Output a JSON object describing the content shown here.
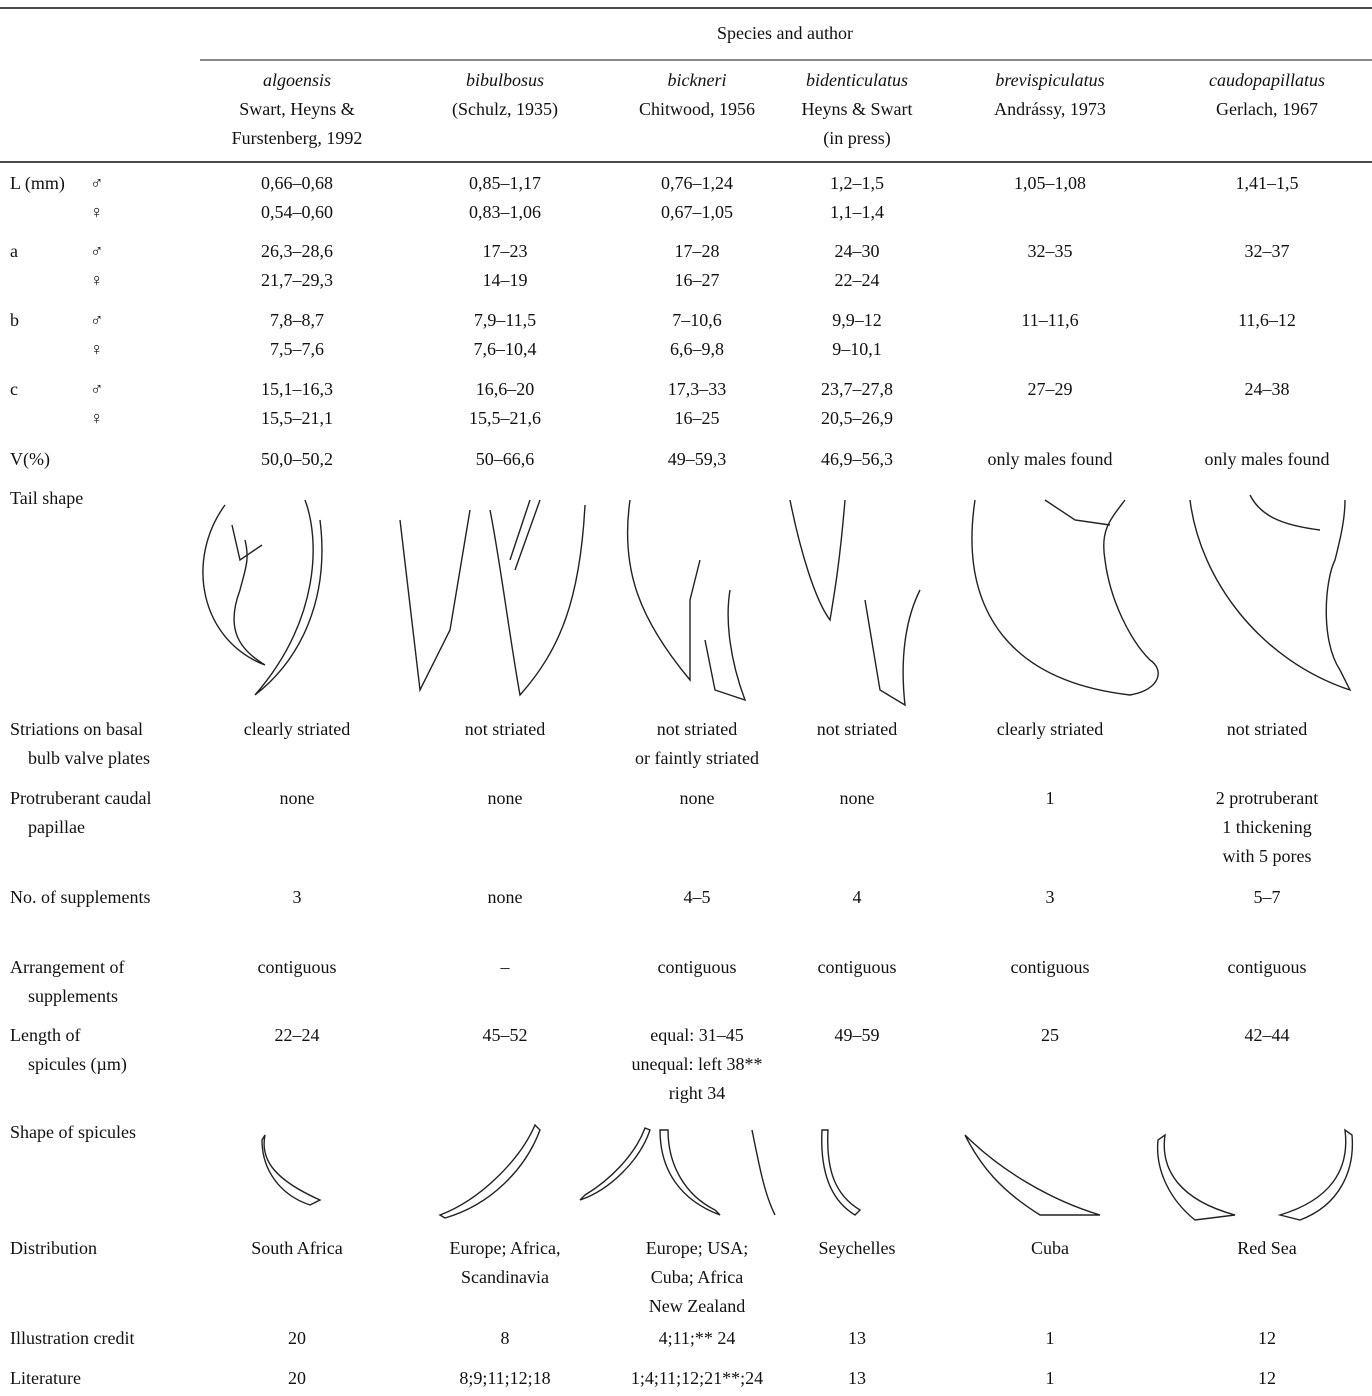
{
  "table": {
    "group_header": "Species and author",
    "columns": [
      {
        "species": "algoensis",
        "author": [
          "Swart, Heyns &",
          "Furstenberg, 1992"
        ]
      },
      {
        "species": "bibulbosus",
        "author": [
          "(Schulz, 1935)"
        ]
      },
      {
        "species": "bickneri",
        "author": [
          "Chitwood, 1956"
        ]
      },
      {
        "species": "bidenticulatus",
        "author": [
          "Heyns & Swart",
          "(in press)"
        ]
      },
      {
        "species": "brevispiculatus",
        "author": [
          "Andrássy, 1973"
        ]
      },
      {
        "species": "caudopapillatus",
        "author": [
          "Gerlach, 1967"
        ]
      }
    ],
    "rows": [
      {
        "label": [
          "L (mm)"
        ],
        "sex": [
          "♂",
          "♀"
        ],
        "cells": [
          [
            "0,66–0,68",
            "0,54–0,60"
          ],
          [
            "0,85–1,17",
            "0,83–1,06"
          ],
          [
            "0,76–1,24",
            "0,67–1,05"
          ],
          [
            "1,2–1,5",
            "1,1–1,4"
          ],
          [
            "1,05–1,08"
          ],
          [
            "1,41–1,5"
          ]
        ]
      },
      {
        "label": [
          "a"
        ],
        "sex": [
          "♂",
          "♀"
        ],
        "cells": [
          [
            "26,3–28,6",
            "21,7–29,3"
          ],
          [
            "17–23",
            "14–19"
          ],
          [
            "17–28",
            "16–27"
          ],
          [
            "24–30",
            "22–24"
          ],
          [
            "32–35"
          ],
          [
            "32–37"
          ]
        ]
      },
      {
        "label": [
          "b"
        ],
        "sex": [
          "♂",
          "♀"
        ],
        "cells": [
          [
            "7,8–8,7",
            "7,5–7,6"
          ],
          [
            "7,9–11,5",
            "7,6–10,4"
          ],
          [
            "7–10,6",
            "6,6–9,8"
          ],
          [
            "9,9–12",
            "9–10,1"
          ],
          [
            "11–11,6"
          ],
          [
            "11,6–12"
          ]
        ]
      },
      {
        "label": [
          "c"
        ],
        "sex": [
          "♂",
          "♀"
        ],
        "cells": [
          [
            "15,1–16,3",
            "15,5–21,1"
          ],
          [
            "16,6–20",
            "15,5–21,6"
          ],
          [
            "17,3–33",
            "16–25"
          ],
          [
            "23,7–27,8",
            "20,5–26,9"
          ],
          [
            "27–29"
          ],
          [
            "24–38"
          ]
        ]
      },
      {
        "label": [
          "V(%)"
        ],
        "cells": [
          [
            "50,0–50,2"
          ],
          [
            "50–66,6"
          ],
          [
            "49–59,3"
          ],
          [
            "46,9–56,3"
          ],
          [
            "only males found"
          ],
          [
            "only males found"
          ]
        ]
      },
      {
        "label": [
          "Tail shape"
        ]
      },
      {
        "label": [
          "Striations on basal",
          "bulb valve plates"
        ],
        "cells": [
          [
            "clearly striated"
          ],
          [
            "not striated"
          ],
          [
            "not striated",
            "or faintly striated"
          ],
          [
            "not striated"
          ],
          [
            "clearly striated"
          ],
          [
            "not striated"
          ]
        ]
      },
      {
        "label": [
          "Protruberant caudal",
          "papillae"
        ],
        "cells": [
          [
            "none"
          ],
          [
            "none"
          ],
          [
            "none"
          ],
          [
            "none"
          ],
          [
            "1"
          ],
          [
            "2 protruberant",
            "1 thickening",
            "with 5 pores"
          ]
        ]
      },
      {
        "label": [
          "No. of supplements"
        ],
        "cells": [
          [
            "3"
          ],
          [
            "none"
          ],
          [
            "4–5"
          ],
          [
            "4"
          ],
          [
            "3"
          ],
          [
            "5–7"
          ]
        ]
      },
      {
        "label": [
          "Arrangement of",
          "supplements"
        ],
        "cells": [
          [
            "contiguous"
          ],
          [
            "–"
          ],
          [
            "contiguous"
          ],
          [
            "contiguous"
          ],
          [
            "contiguous"
          ],
          [
            "contiguous"
          ]
        ]
      },
      {
        "label": [
          "Length of",
          "spicules (µm)"
        ],
        "cells": [
          [
            "22–24"
          ],
          [
            "45–52"
          ],
          [
            "equal: 31–45",
            "unequal: left 38**",
            "right 34"
          ],
          [
            "49–59"
          ],
          [
            "25"
          ],
          [
            "42–44"
          ]
        ]
      },
      {
        "label": [
          "Shape of spicules"
        ]
      },
      {
        "label": [
          "Distribution"
        ],
        "cells": [
          [
            "South Africa"
          ],
          [
            "Europe; Africa,",
            "Scandinavia"
          ],
          [
            "Europe; USA;",
            "Cuba; Africa",
            "New Zealand"
          ],
          [
            "Seychelles"
          ],
          [
            "Cuba"
          ],
          [
            "Red Sea"
          ]
        ]
      },
      {
        "label": [
          "Illustration credit"
        ],
        "cells": [
          [
            "20"
          ],
          [
            "8"
          ],
          [
            "4;11;** 24"
          ],
          [
            "13"
          ],
          [
            "1"
          ],
          [
            "12"
          ]
        ]
      },
      {
        "label": [
          "Literature"
        ],
        "cells": [
          [
            "20"
          ],
          [
            "8;9;11;12;18"
          ],
          [
            "1;4;11;12;21**;24"
          ],
          [
            "13"
          ],
          [
            "1"
          ],
          [
            "12"
          ]
        ]
      }
    ]
  }
}
